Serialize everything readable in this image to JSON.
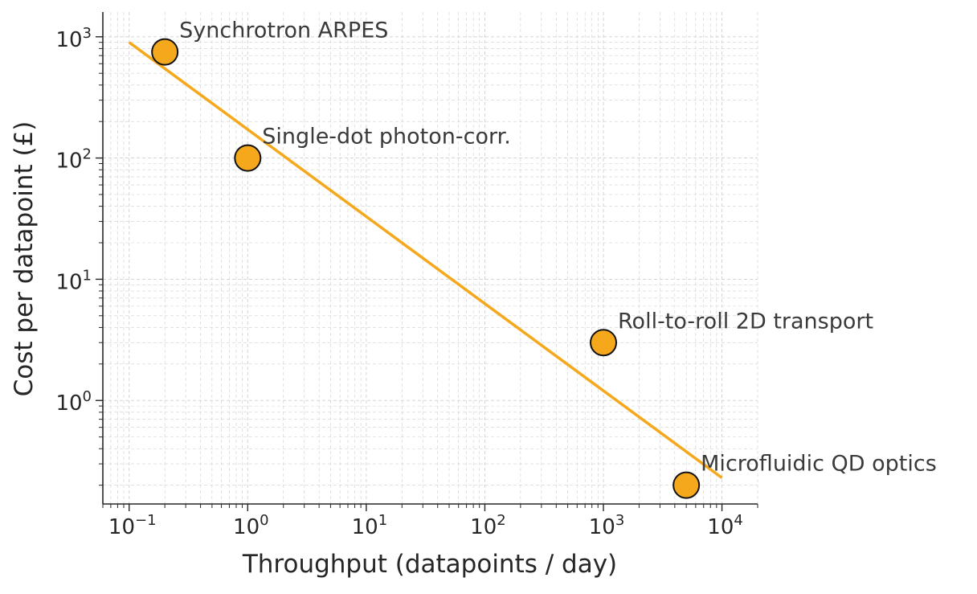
{
  "chart_data": {
    "type": "scatter",
    "title": "",
    "xlabel": "Throughput (datapoints / day)",
    "ylabel": "Cost per datapoint (£)",
    "xscale": "log",
    "yscale": "log",
    "xlim": [
      0.06,
      20000
    ],
    "ylim": [
      0.14,
      1600
    ],
    "x_ticks": [
      {
        "value": 0.1,
        "base": "10",
        "exp": "−1"
      },
      {
        "value": 1,
        "base": "10",
        "exp": "0"
      },
      {
        "value": 10,
        "base": "10",
        "exp": "1"
      },
      {
        "value": 100,
        "base": "10",
        "exp": "2"
      },
      {
        "value": 1000,
        "base": "10",
        "exp": "3"
      },
      {
        "value": 10000,
        "base": "10",
        "exp": "4"
      }
    ],
    "y_ticks": [
      {
        "value": 1,
        "base": "10",
        "exp": "0"
      },
      {
        "value": 10,
        "base": "10",
        "exp": "1"
      },
      {
        "value": 100,
        "base": "10",
        "exp": "2"
      },
      {
        "value": 1000,
        "base": "10",
        "exp": "3"
      }
    ],
    "grid": true,
    "grid_minor": true,
    "points": [
      {
        "label": "Synchrotron ARPES",
        "x": 0.2,
        "y": 750
      },
      {
        "label": "Single-dot photon-corr.",
        "x": 1,
        "y": 100
      },
      {
        "label": "Roll-to-roll 2D transport",
        "x": 1000,
        "y": 3
      },
      {
        "label": "Microfluidic QD optics",
        "x": 5000,
        "y": 0.2
      }
    ],
    "trend_line": {
      "x": [
        0.1,
        10000
      ],
      "y": [
        900,
        0.23
      ]
    },
    "colors": {
      "marker_fill": "#f5a81c",
      "marker_edge": "#111111",
      "trend_line": "#f5a81c",
      "grid": "#cfcfcf",
      "axis": "#262626"
    }
  }
}
